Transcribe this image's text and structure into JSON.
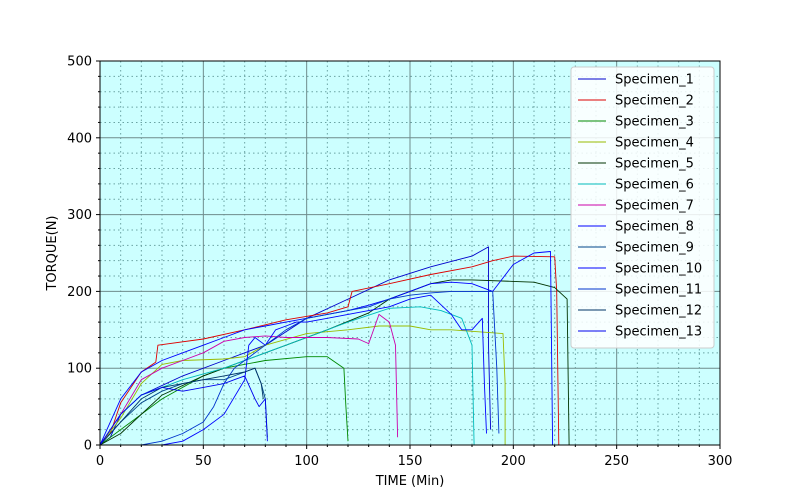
{
  "chart_data": {
    "type": "line",
    "xlabel": "TIME (Min)",
    "ylabel": "TORQUE(N)",
    "xlim": [
      0,
      300
    ],
    "ylim": [
      0,
      500
    ],
    "xticks": [
      0,
      50,
      100,
      150,
      200,
      250,
      300
    ],
    "yticks": [
      0,
      100,
      200,
      300,
      400,
      500
    ],
    "grid": true,
    "background": "#ccffff",
    "legend_position": "top-right",
    "series": [
      {
        "name": "Specimen_1",
        "color": "#0000cc",
        "points": [
          [
            0,
            0
          ],
          [
            5,
            10
          ],
          [
            10,
            40
          ],
          [
            20,
            65
          ],
          [
            40,
            90
          ],
          [
            60,
            110
          ],
          [
            80,
            130
          ],
          [
            100,
            165
          ],
          [
            120,
            190
          ],
          [
            140,
            215
          ],
          [
            160,
            232
          ],
          [
            180,
            246
          ],
          [
            188,
            258
          ],
          [
            188,
            130
          ],
          [
            189,
            20
          ]
        ]
      },
      {
        "name": "Specimen_2",
        "color": "#dd0000",
        "points": [
          [
            0,
            0
          ],
          [
            5,
            15
          ],
          [
            10,
            55
          ],
          [
            20,
            95
          ],
          [
            27,
            108
          ],
          [
            28,
            130
          ],
          [
            50,
            138
          ],
          [
            70,
            150
          ],
          [
            90,
            163
          ],
          [
            110,
            172
          ],
          [
            120,
            180
          ],
          [
            122,
            200
          ],
          [
            140,
            210
          ],
          [
            160,
            222
          ],
          [
            180,
            232
          ],
          [
            190,
            240
          ],
          [
            200,
            246
          ],
          [
            220,
            245
          ],
          [
            221,
            200
          ],
          [
            222,
            0
          ]
        ]
      },
      {
        "name": "Specimen_3",
        "color": "#008800",
        "points": [
          [
            0,
            0
          ],
          [
            10,
            20
          ],
          [
            20,
            40
          ],
          [
            30,
            60
          ],
          [
            50,
            90
          ],
          [
            60,
            100
          ],
          [
            80,
            110
          ],
          [
            100,
            115
          ],
          [
            110,
            115
          ],
          [
            118,
            100
          ],
          [
            119,
            50
          ],
          [
            120,
            5
          ]
        ]
      },
      {
        "name": "Specimen_4",
        "color": "#99bb00",
        "points": [
          [
            0,
            0
          ],
          [
            10,
            35
          ],
          [
            20,
            80
          ],
          [
            30,
            105
          ],
          [
            40,
            110
          ],
          [
            60,
            112
          ],
          [
            70,
            115
          ],
          [
            80,
            130
          ],
          [
            100,
            145
          ],
          [
            120,
            150
          ],
          [
            135,
            155
          ],
          [
            150,
            155
          ],
          [
            160,
            150
          ],
          [
            170,
            150
          ],
          [
            180,
            148
          ],
          [
            195,
            145
          ],
          [
            196,
            80
          ],
          [
            196,
            0
          ]
        ]
      },
      {
        "name": "Specimen_5",
        "color": "#003300",
        "points": [
          [
            0,
            0
          ],
          [
            10,
            15
          ],
          [
            30,
            65
          ],
          [
            50,
            90
          ],
          [
            70,
            110
          ],
          [
            90,
            130
          ],
          [
            110,
            150
          ],
          [
            130,
            172
          ],
          [
            140,
            190
          ],
          [
            150,
            200
          ],
          [
            160,
            210
          ],
          [
            170,
            215
          ],
          [
            180,
            215
          ],
          [
            200,
            213
          ],
          [
            210,
            212
          ],
          [
            220,
            205
          ],
          [
            226,
            190
          ],
          [
            227,
            0
          ]
        ]
      },
      {
        "name": "Specimen_6",
        "color": "#00bbbb",
        "points": [
          [
            0,
            0
          ],
          [
            10,
            40
          ],
          [
            20,
            65
          ],
          [
            30,
            75
          ],
          [
            40,
            85
          ],
          [
            60,
            100
          ],
          [
            80,
            120
          ],
          [
            100,
            140
          ],
          [
            120,
            160
          ],
          [
            140,
            178
          ],
          [
            155,
            180
          ],
          [
            165,
            175
          ],
          [
            175,
            165
          ],
          [
            180,
            130
          ],
          [
            181,
            0
          ]
        ]
      },
      {
        "name": "Specimen_7",
        "color": "#cc00aa",
        "points": [
          [
            0,
            0
          ],
          [
            10,
            40
          ],
          [
            20,
            85
          ],
          [
            30,
            100
          ],
          [
            40,
            110
          ],
          [
            50,
            120
          ],
          [
            60,
            135
          ],
          [
            70,
            140
          ],
          [
            80,
            142
          ],
          [
            90,
            140
          ],
          [
            110,
            140
          ],
          [
            125,
            138
          ],
          [
            130,
            132
          ],
          [
            135,
            170
          ],
          [
            140,
            160
          ],
          [
            143,
            130
          ],
          [
            144,
            10
          ]
        ]
      },
      {
        "name": "Specimen_8",
        "color": "#0000ff",
        "points": [
          [
            0,
            0
          ],
          [
            30,
            0
          ],
          [
            40,
            5
          ],
          [
            50,
            20
          ],
          [
            60,
            40
          ],
          [
            70,
            85
          ],
          [
            72,
            130
          ],
          [
            75,
            140
          ],
          [
            80,
            130
          ],
          [
            85,
            150
          ],
          [
            90,
            155
          ],
          [
            95,
            160
          ],
          [
            100,
            160
          ],
          [
            110,
            165
          ],
          [
            120,
            170
          ],
          [
            130,
            175
          ],
          [
            140,
            180
          ],
          [
            150,
            190
          ],
          [
            160,
            195
          ],
          [
            170,
            170
          ],
          [
            175,
            150
          ],
          [
            180,
            150
          ],
          [
            185,
            165
          ],
          [
            186,
            80
          ],
          [
            187,
            15
          ]
        ]
      },
      {
        "name": "Specimen_9",
        "color": "#004488",
        "points": [
          [
            0,
            0
          ],
          [
            10,
            30
          ],
          [
            20,
            55
          ],
          [
            30,
            70
          ],
          [
            40,
            80
          ],
          [
            50,
            85
          ],
          [
            60,
            85
          ],
          [
            70,
            95
          ],
          [
            75,
            100
          ],
          [
            78,
            80
          ],
          [
            80,
            60
          ],
          [
            81,
            10
          ]
        ]
      },
      {
        "name": "Specimen_10",
        "color": "#0000ff",
        "points": [
          [
            0,
            0
          ],
          [
            10,
            60
          ],
          [
            20,
            95
          ],
          [
            30,
            110
          ],
          [
            40,
            120
          ],
          [
            50,
            130
          ],
          [
            60,
            140
          ],
          [
            70,
            150
          ],
          [
            80,
            155
          ],
          [
            90,
            160
          ],
          [
            100,
            165
          ],
          [
            110,
            170
          ],
          [
            120,
            175
          ],
          [
            130,
            182
          ],
          [
            140,
            190
          ],
          [
            150,
            200
          ],
          [
            160,
            210
          ],
          [
            170,
            212
          ],
          [
            180,
            210
          ],
          [
            190,
            200
          ],
          [
            200,
            235
          ],
          [
            210,
            250
          ],
          [
            218,
            252
          ],
          [
            219,
            0
          ]
        ]
      },
      {
        "name": "Specimen_11",
        "color": "#0033cc",
        "points": [
          [
            0,
            0
          ],
          [
            20,
            0
          ],
          [
            30,
            5
          ],
          [
            40,
            15
          ],
          [
            50,
            30
          ],
          [
            55,
            50
          ],
          [
            60,
            80
          ],
          [
            65,
            100
          ],
          [
            70,
            110
          ],
          [
            80,
            130
          ],
          [
            90,
            150
          ],
          [
            100,
            165
          ],
          [
            110,
            170
          ],
          [
            120,
            175
          ],
          [
            130,
            180
          ],
          [
            140,
            190
          ],
          [
            150,
            195
          ],
          [
            160,
            198
          ],
          [
            170,
            200
          ],
          [
            180,
            200
          ],
          [
            190,
            200
          ],
          [
            192,
            100
          ],
          [
            193,
            15
          ]
        ]
      },
      {
        "name": "Specimen_12",
        "color": "#003366",
        "points": [
          [
            0,
            0
          ],
          [
            10,
            30
          ],
          [
            20,
            60
          ],
          [
            30,
            75
          ],
          [
            40,
            80
          ],
          [
            50,
            85
          ],
          [
            60,
            90
          ],
          [
            70,
            95
          ],
          [
            75,
            100
          ],
          [
            78,
            80
          ],
          [
            79,
            60
          ]
        ]
      },
      {
        "name": "Specimen_13",
        "color": "#0000ee",
        "points": [
          [
            0,
            0
          ],
          [
            10,
            40
          ],
          [
            20,
            65
          ],
          [
            30,
            75
          ],
          [
            40,
            70
          ],
          [
            50,
            75
          ],
          [
            60,
            80
          ],
          [
            65,
            85
          ],
          [
            70,
            90
          ],
          [
            75,
            60
          ],
          [
            77,
            50
          ],
          [
            80,
            60
          ],
          [
            81,
            5
          ]
        ]
      }
    ]
  }
}
